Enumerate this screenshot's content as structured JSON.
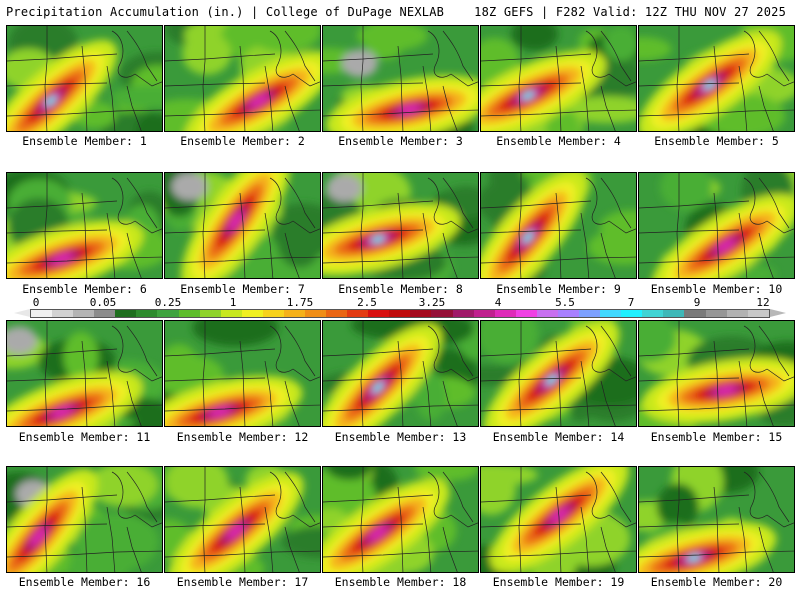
{
  "header": {
    "left_title": "Precipitation Accumulation (in.) | College of DuPage NEXLAB",
    "right_title": "18Z GEFS | F282 Valid: 12Z THU NOV 27 2025"
  },
  "colorbar": {
    "labels": [
      "0",
      "0.05",
      "0.25",
      "1",
      "1.75",
      "2.5",
      "3.25",
      "4",
      "5.5",
      "7",
      "9",
      "12"
    ],
    "colors": [
      "#f0f0f0",
      "#d2d2d2",
      "#b4b4b4",
      "#8c8c8c",
      "#1e6e1e",
      "#2e8b2e",
      "#3fa33f",
      "#5ebd2c",
      "#8fd32a",
      "#c8e81e",
      "#f0f020",
      "#f7d21c",
      "#f5b11a",
      "#f08e17",
      "#ea6614",
      "#e33b12",
      "#d81010",
      "#bf0c0c",
      "#a50a1e",
      "#951038",
      "#a01a6a",
      "#c0208f",
      "#df2ab9",
      "#f040e4",
      "#c870f0",
      "#a880ff",
      "#7da0ff",
      "#40d8ff",
      "#20f0ff",
      "#40d4d4",
      "#3fb8b8",
      "#7a7a7a",
      "#969696",
      "#b2b2b2",
      "#c8c8c8"
    ]
  },
  "members": [
    {
      "label": "Ensemble Member: 1"
    },
    {
      "label": "Ensemble Member: 2"
    },
    {
      "label": "Ensemble Member: 3"
    },
    {
      "label": "Ensemble Member: 4"
    },
    {
      "label": "Ensemble Member: 5"
    },
    {
      "label": "Ensemble Member: 6"
    },
    {
      "label": "Ensemble Member: 7"
    },
    {
      "label": "Ensemble Member: 8"
    },
    {
      "label": "Ensemble Member: 9"
    },
    {
      "label": "Ensemble Member: 10"
    },
    {
      "label": "Ensemble Member: 11"
    },
    {
      "label": "Ensemble Member: 12"
    },
    {
      "label": "Ensemble Member: 13"
    },
    {
      "label": "Ensemble Member: 14"
    },
    {
      "label": "Ensemble Member: 15"
    },
    {
      "label": "Ensemble Member: 16"
    },
    {
      "label": "Ensemble Member: 17"
    },
    {
      "label": "Ensemble Member: 18"
    },
    {
      "label": "Ensemble Member: 19"
    },
    {
      "label": "Ensemble Member: 20"
    }
  ]
}
